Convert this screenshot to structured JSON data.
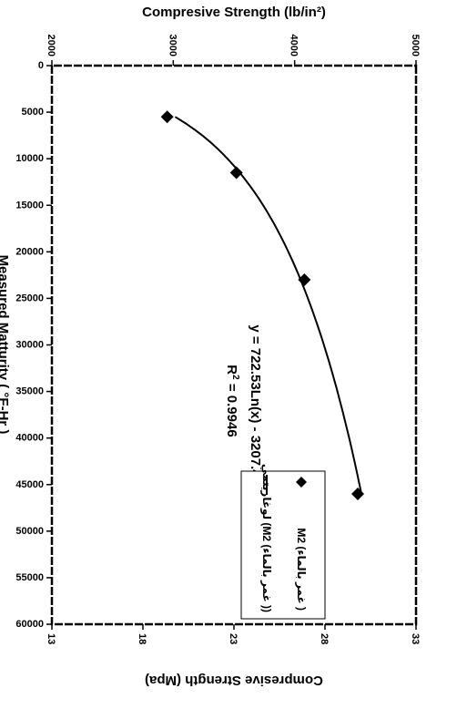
{
  "chart_data": {
    "type": "scatter",
    "x": {
      "label": "Measured Matturity ( °F-Hr )",
      "range": [
        0,
        60000
      ],
      "ticks": [
        0,
        5000,
        10000,
        15000,
        20000,
        25000,
        30000,
        35000,
        40000,
        45000,
        50000,
        55000,
        60000
      ]
    },
    "y_left": {
      "label": "Compresive Strength (lb/in²)",
      "range": [
        2000,
        5000
      ],
      "ticks": [
        2000,
        3000,
        4000,
        5000
      ]
    },
    "y_right": {
      "label": "Compresive Strength (Mpa)",
      "range": [
        13,
        33
      ],
      "ticks": [
        13,
        18,
        23,
        28,
        33
      ]
    },
    "series": [
      {
        "name": "M2 (غمر بالماء )",
        "kind": "points",
        "marker": "diamond",
        "points": [
          {
            "x": 5500,
            "y": 2950
          },
          {
            "x": 11500,
            "y": 3520
          },
          {
            "x": 23000,
            "y": 4080
          },
          {
            "x": 46000,
            "y": 4520
          }
        ]
      },
      {
        "name": "لوغاريتمي (M2 (غمر بالماء ))",
        "kind": "fit",
        "marker": "line",
        "equation": {
          "a": 722.53,
          "b": -3207.4
        },
        "x_start": 5500,
        "x_end": 46000
      }
    ],
    "annotation": {
      "equation": "y = 722.53Ln(x) - 3207.4",
      "r2_prefix": "R",
      "r2_sup": "2",
      "r2_value": " = 0.9946"
    },
    "grid": false,
    "legend_position": "top-right",
    "orientation": "rotated-90-clockwise"
  }
}
